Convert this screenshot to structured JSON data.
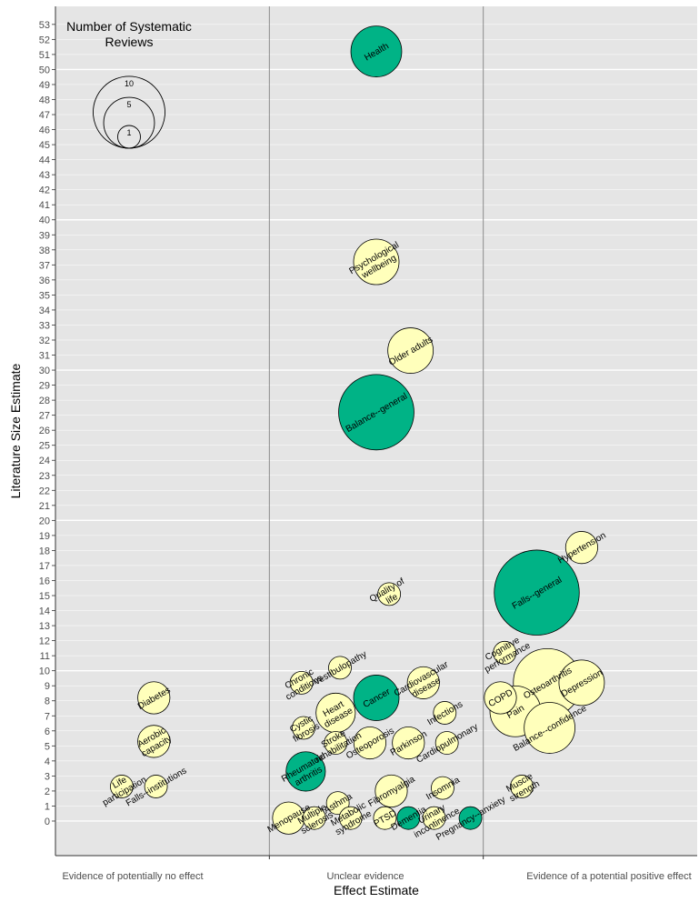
{
  "chart_data": {
    "type": "scatter",
    "xlabel": "Effect Estimate",
    "ylabel": "Literature Size Estimate",
    "ylim": [
      -2.3,
      54.2
    ],
    "ytick_range": [
      0,
      53
    ],
    "categories": [
      "Evidence of potentially no effect",
      "Unclear evidence",
      "Evidence of a potential positive effect"
    ],
    "legend": {
      "title": "Number of Systematic Reviews",
      "title_lines": [
        "Number of Systematic",
        "Reviews"
      ],
      "sizes": [
        10,
        5,
        1
      ],
      "placement": "top-left"
    },
    "colors": {
      "green": "#00b386",
      "yellow": "#ffffbb",
      "panel": "#e5e5e5"
    },
    "points": [
      {
        "label": "Health",
        "x": 1.5,
        "y": 51.2,
        "reviews": 5,
        "color": "green"
      },
      {
        "label": "Psychological wellbeing",
        "x": 1.5,
        "y": 37.2,
        "reviews": 4,
        "color": "yellow"
      },
      {
        "label": "Older adults",
        "x": 1.66,
        "y": 31.3,
        "reviews": 4,
        "color": "yellow"
      },
      {
        "label": "Balance--general",
        "x": 1.5,
        "y": 27.2,
        "reviews": 11,
        "color": "green"
      },
      {
        "label": "Quality of life",
        "x": 1.56,
        "y": 15.1,
        "reviews": 1,
        "color": "yellow"
      },
      {
        "label": "Vestibulopathy",
        "x": 1.33,
        "y": 10.2,
        "reviews": 1,
        "color": "yellow"
      },
      {
        "label": "Chronic conditions",
        "x": 1.15,
        "y": 9.2,
        "reviews": 1,
        "color": "yellow"
      },
      {
        "label": "Cancer",
        "x": 1.5,
        "y": 8.2,
        "reviews": 4,
        "color": "green"
      },
      {
        "label": "Cardiovascular disease",
        "x": 1.72,
        "y": 9.2,
        "reviews": 2,
        "color": "yellow"
      },
      {
        "label": "Heart disease",
        "x": 1.31,
        "y": 7.2,
        "reviews": 3,
        "color": "yellow"
      },
      {
        "label": "Cystic fibrosis",
        "x": 1.16,
        "y": 6.2,
        "reviews": 1,
        "color": "yellow"
      },
      {
        "label": "Stroke rehabilitation",
        "x": 1.31,
        "y": 5.2,
        "reviews": 1,
        "color": "yellow"
      },
      {
        "label": "Osteoporosis",
        "x": 1.47,
        "y": 5.2,
        "reviews": 2,
        "color": "yellow"
      },
      {
        "label": "Parkinson",
        "x": 1.65,
        "y": 5.2,
        "reviews": 2,
        "color": "yellow"
      },
      {
        "label": "Infections",
        "x": 1.82,
        "y": 7.2,
        "reviews": 1,
        "color": "yellow"
      },
      {
        "label": "Cardiopulmonary",
        "x": 1.83,
        "y": 5.2,
        "reviews": 1,
        "color": "yellow"
      },
      {
        "label": "Rheumatoid arthritis",
        "x": 1.17,
        "y": 3.3,
        "reviews": 3,
        "color": "green"
      },
      {
        "label": "Insomnia",
        "x": 1.81,
        "y": 2.2,
        "reviews": 1,
        "color": "yellow"
      },
      {
        "label": "Fibromyalgia",
        "x": 1.57,
        "y": 2.0,
        "reviews": 2,
        "color": "yellow"
      },
      {
        "label": "Asthma",
        "x": 1.32,
        "y": 1.2,
        "reviews": 1,
        "color": "yellow"
      },
      {
        "label": "Menopause",
        "x": 1.09,
        "y": 0.2,
        "reviews": 2,
        "color": "yellow"
      },
      {
        "label": "Multiple sclerosis",
        "x": 1.21,
        "y": 0.2,
        "reviews": 1,
        "color": "yellow"
      },
      {
        "label": "Metabolic syndrome",
        "x": 1.38,
        "y": 0.2,
        "reviews": 1,
        "color": "yellow"
      },
      {
        "label": "PTSD",
        "x": 1.54,
        "y": 0.2,
        "reviews": 1,
        "color": "yellow"
      },
      {
        "label": "Dementia",
        "x": 1.65,
        "y": 0.2,
        "reviews": 1,
        "color": "green"
      },
      {
        "label": "Urinary incontinence",
        "x": 1.77,
        "y": 0.2,
        "reviews": 1,
        "color": "yellow"
      },
      {
        "label": "Pregnancy--anxiety",
        "x": 1.94,
        "y": 0.2,
        "reviews": 1,
        "color": "green"
      },
      {
        "label": "Diabetes",
        "x": 0.46,
        "y": 8.2,
        "reviews": 2,
        "color": "yellow"
      },
      {
        "label": "Aerobic capacity",
        "x": 0.46,
        "y": 5.3,
        "reviews": 2,
        "color": "yellow"
      },
      {
        "label": "Life participation",
        "x": 0.31,
        "y": 2.3,
        "reviews": 1,
        "color": "yellow"
      },
      {
        "label": "Falls--institutions",
        "x": 0.47,
        "y": 2.3,
        "reviews": 1,
        "color": "yellow"
      },
      {
        "label": "Hypertension",
        "x": 2.46,
        "y": 18.2,
        "reviews": 2,
        "color": "yellow"
      },
      {
        "label": "Falls--general",
        "x": 2.25,
        "y": 15.2,
        "reviews": 14,
        "color": "green"
      },
      {
        "label": "Cognitive performance",
        "x": 2.1,
        "y": 11.2,
        "reviews": 1,
        "color": "yellow"
      },
      {
        "label": "Osteoarthritis",
        "x": 2.3,
        "y": 9.2,
        "reviews": 9,
        "color": "yellow"
      },
      {
        "label": "Depression",
        "x": 2.46,
        "y": 9.2,
        "reviews": 4,
        "color": "yellow"
      },
      {
        "label": "COPD",
        "x": 2.08,
        "y": 8.2,
        "reviews": 2,
        "color": "yellow"
      },
      {
        "label": "Pain",
        "x": 2.15,
        "y": 7.3,
        "reviews": 5,
        "color": "yellow"
      },
      {
        "label": "Balance--confidence",
        "x": 2.31,
        "y": 6.2,
        "reviews": 5,
        "color": "yellow"
      },
      {
        "label": "Muscle strength",
        "x": 2.18,
        "y": 2.3,
        "reviews": 1,
        "color": "yellow"
      }
    ]
  }
}
